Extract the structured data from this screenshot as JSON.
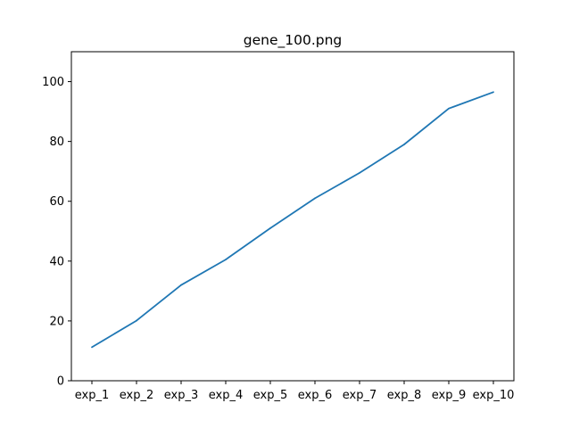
{
  "chart_data": {
    "type": "line",
    "title": "gene_100.png",
    "xlabel": "",
    "ylabel": "",
    "categories": [
      "exp_1",
      "exp_2",
      "exp_3",
      "exp_4",
      "exp_5",
      "exp_6",
      "exp_7",
      "exp_8",
      "exp_9",
      "exp_10"
    ],
    "series": [
      {
        "values": [
          11.2,
          20.1,
          32.0,
          40.5,
          51.0,
          61.0,
          69.5,
          79.0,
          91.0,
          96.5
        ],
        "color": "#1f77b4"
      }
    ],
    "ylim": [
      0,
      110
    ],
    "yticks": [
      0,
      20,
      40,
      60,
      80,
      100
    ],
    "grid": false,
    "legend": "none"
  }
}
